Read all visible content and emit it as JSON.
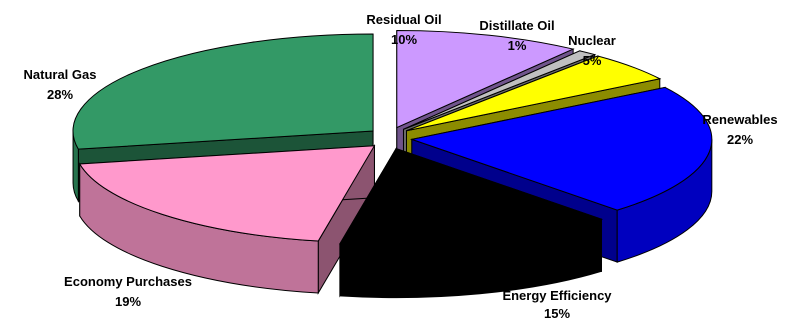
{
  "chart_data": {
    "type": "pie",
    "title": "",
    "slices": [
      {
        "label": "Residual Oil",
        "percent_label": "10%",
        "value": 10,
        "color": "#cc99ff"
      },
      {
        "label": "Distillate Oil",
        "percent_label": "1%",
        "value": 1,
        "color": "#c0c0c0"
      },
      {
        "label": "Nuclear",
        "percent_label": "5%",
        "value": 5,
        "color": "#ffff00"
      },
      {
        "label": "Renewables",
        "percent_label": "22%",
        "value": 22,
        "color": "#0000ff"
      },
      {
        "label": "Energy Efficiency",
        "percent_label": "15%",
        "value": 15,
        "color": "#000000"
      },
      {
        "label": "Economy Purchases",
        "percent_label": "19%",
        "value": 19,
        "color": "#ff99cc"
      },
      {
        "label": "Natural Gas",
        "percent_label": "28%",
        "value": 28,
        "color": "#339966"
      }
    ]
  }
}
